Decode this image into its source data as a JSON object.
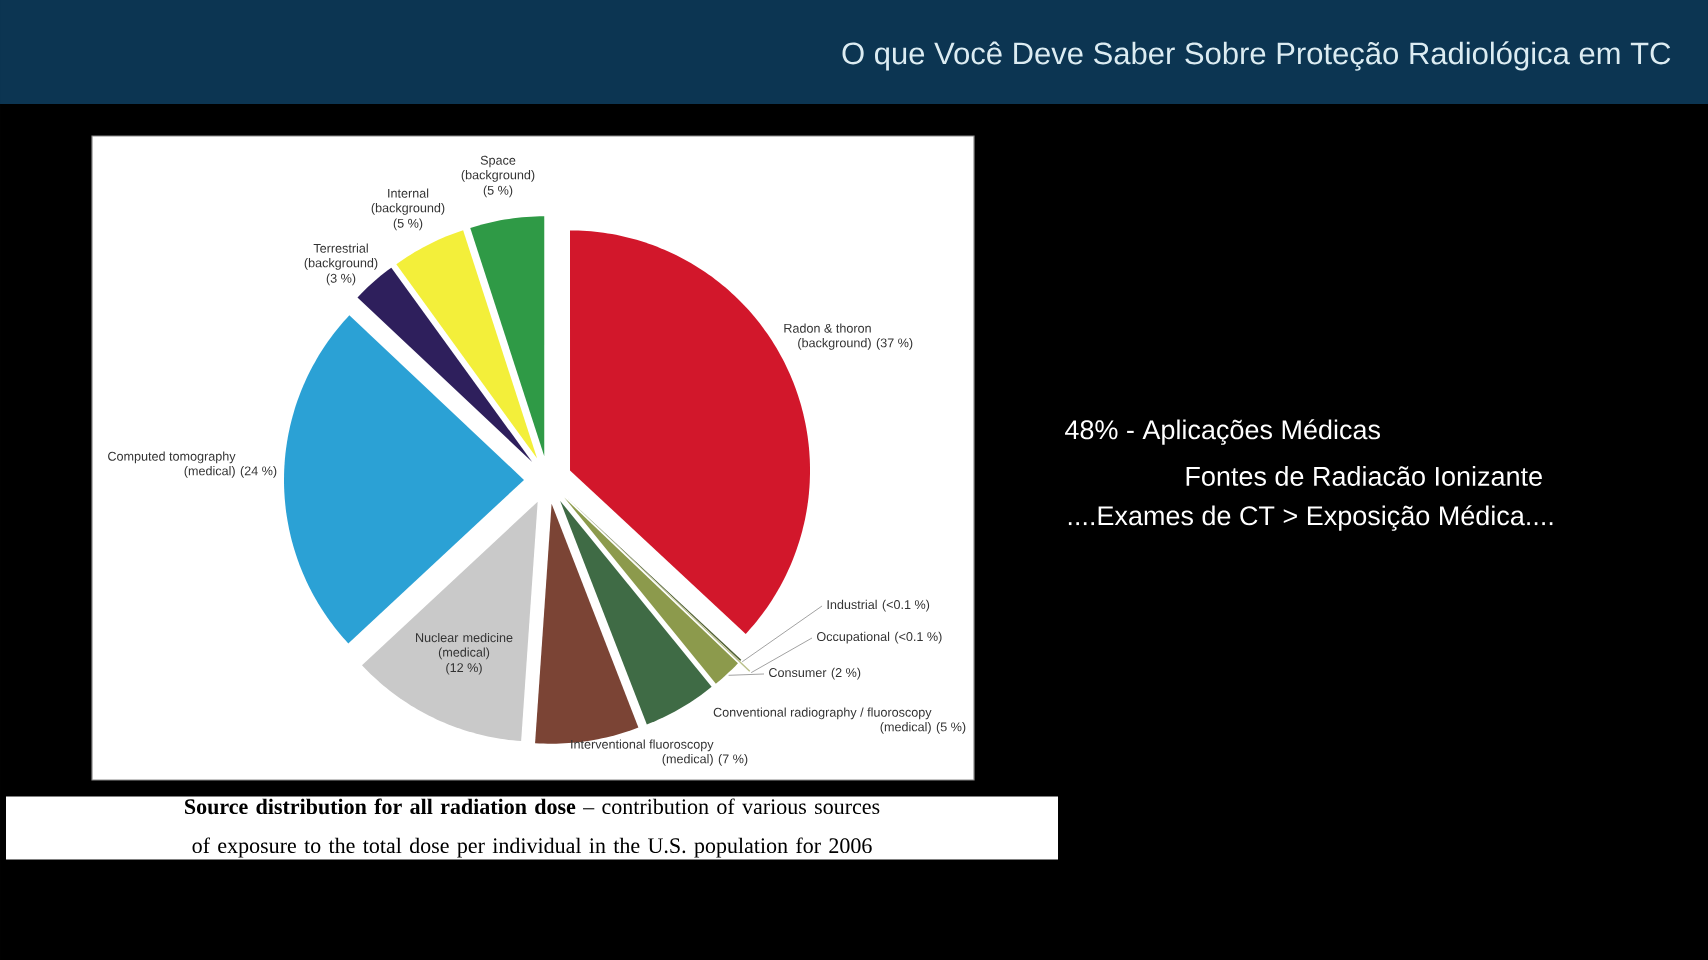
{
  "chart_data": {
    "type": "pie",
    "title": "O que Você Deve Saber Sobre Proteção Radiológica em TC",
    "categories": [
      "Radon & thoron (background)",
      "Industrial",
      "Occupational",
      "Consumer",
      "Conventional radiography / fluoroscopy (medical)",
      "Interventional fluoroscopy (medical)",
      "Nuclear medicine (medical)",
      "Computed tomography (medical)",
      "Terrestrial (background)",
      "Internal (background)",
      "Space (background)"
    ],
    "values": [
      37,
      0.1,
      0.1,
      2,
      5,
      7,
      12,
      24,
      3,
      5,
      5
    ],
    "value_labels": [
      "(37 %)",
      "(<0.1 %)",
      "(<0.1 %)",
      "(2 %)",
      "(5 %)",
      "(7 %)",
      "(12 %)",
      "(24 %)",
      "(3 %)",
      "(5 %)",
      "(5 %)"
    ],
    "colors": [
      "#d2172b",
      "#4f5f34",
      "#b9bf8a",
      "#8c9a4c",
      "#3f6b45",
      "#7b4435",
      "#c9c9c9",
      "#2ba1d5",
      "#2e1f5c",
      "#f3ef3a",
      "#2f9a46"
    ],
    "annotations": [
      "**Source distribution for all radiation dose** – contribution of various sources of exposure to the total dose per individual in the U.S. population for 2006",
      "48% - Aplicações Médicas",
      "Fontes de Radiacão Ionizante",
      "....Exames de CT > Exposição Médica...."
    ]
  }
}
